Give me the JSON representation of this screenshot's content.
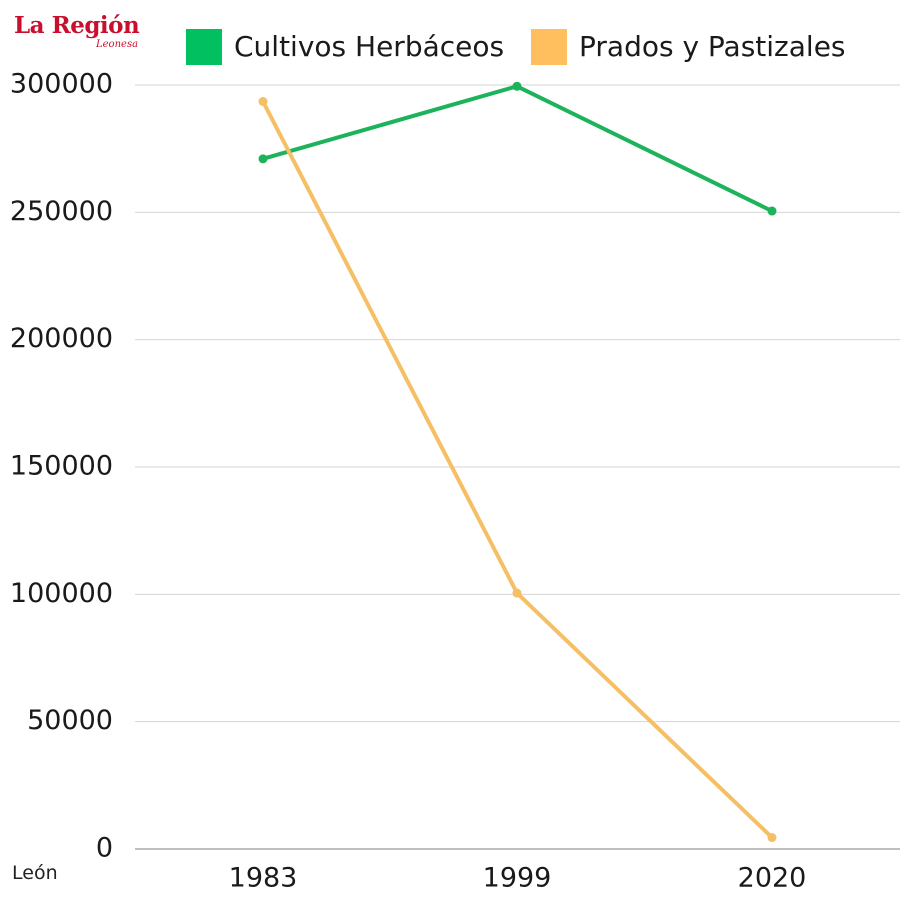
{
  "logo": {
    "name": "La Región",
    "subtitle": "Leonesa"
  },
  "footnote": "León",
  "colors": {
    "green": "#1db35a",
    "orange": "#f5c065",
    "legend_green": "#00c060",
    "legend_orange": "#ffbf5f",
    "grid": "#d5d5d5"
  },
  "legend": [
    {
      "label": "Cultivos Herbáceos"
    },
    {
      "label": "Prados y Pastizales"
    }
  ],
  "chart_data": {
    "type": "line",
    "categories": [
      "1983",
      "1999",
      "2020"
    ],
    "series": [
      {
        "name": "Cultivos Herbáceos",
        "values": [
          271000,
          299500,
          250500
        ]
      },
      {
        "name": "Prados y Pastizales",
        "values": [
          293500,
          100500,
          4500
        ]
      }
    ],
    "y_ticks": [
      "300000",
      "250000",
      "200000",
      "150000",
      "100000",
      "50000",
      "0"
    ],
    "ylim": [
      0,
      300000
    ],
    "grid": true,
    "legend_position": "top",
    "title": "",
    "xlabel": "",
    "ylabel": ""
  }
}
